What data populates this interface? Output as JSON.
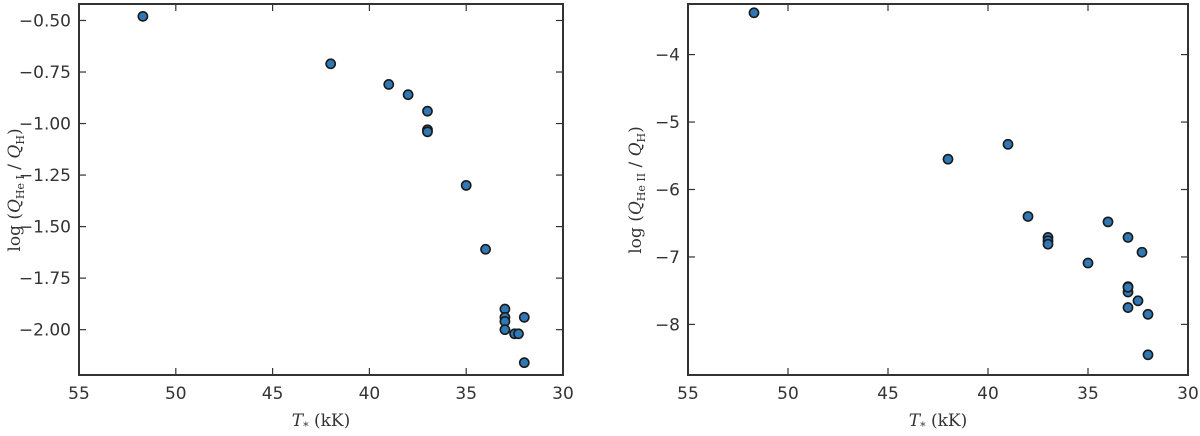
{
  "chart_data": [
    {
      "type": "scatter",
      "xlabel": "T* (kK)",
      "ylabel": "log (QHe I / QH)",
      "xlim": [
        55,
        30
      ],
      "ylim": [
        -2.22,
        -0.42
      ],
      "xticks": [
        55,
        50,
        45,
        40,
        35,
        30
      ],
      "yticks": [
        -0.5,
        -0.75,
        -1.0,
        -1.25,
        -1.5,
        -1.75,
        -2.0
      ],
      "ytick_labels": [
        "−0.50",
        "−0.75",
        "−1.00",
        "−1.25",
        "−1.50",
        "−1.75",
        "−2.00"
      ],
      "xtick_labels": [
        "55",
        "50",
        "45",
        "40",
        "35",
        "30"
      ],
      "grid": false,
      "marker_color": "#2f78b5",
      "marker_edge": "#1a1a1a",
      "x": [
        51.7,
        42.0,
        39.0,
        38.0,
        37.0,
        37.0,
        37.0,
        35.0,
        34.0,
        33.0,
        33.0,
        33.0,
        33.0,
        32.5,
        32.3,
        32.0,
        32.0
      ],
      "y": [
        -0.48,
        -0.71,
        -0.81,
        -0.86,
        -0.94,
        -1.03,
        -1.04,
        -1.3,
        -1.61,
        -1.9,
        -1.94,
        -1.96,
        -2.0,
        -2.02,
        -2.02,
        -1.94,
        -2.16
      ]
    },
    {
      "type": "scatter",
      "xlabel": "T* (kK)",
      "ylabel": "log (QHe II / QH)",
      "xlim": [
        55,
        30
      ],
      "ylim": [
        -8.75,
        -3.25
      ],
      "xticks": [
        55,
        50,
        45,
        40,
        35,
        30
      ],
      "yticks": [
        -4,
        -5,
        -6,
        -7,
        -8
      ],
      "ytick_labels": [
        "−4",
        "−5",
        "−6",
        "−7",
        "−8"
      ],
      "xtick_labels": [
        "55",
        "50",
        "45",
        "40",
        "35",
        "30"
      ],
      "grid": false,
      "marker_color": "#2f78b5",
      "marker_edge": "#1a1a1a",
      "x": [
        51.7,
        42.0,
        39.0,
        38.0,
        37.0,
        37.0,
        37.0,
        35.0,
        34.0,
        33.0,
        33.0,
        33.0,
        33.0,
        33.0,
        32.5,
        32.3,
        32.0,
        32.0
      ],
      "y": [
        -3.38,
        -5.55,
        -5.33,
        -6.4,
        -6.71,
        -6.76,
        -6.81,
        -7.09,
        -6.48,
        -6.71,
        -7.44,
        -7.52,
        -7.75,
        -7.45,
        -7.65,
        -6.93,
        -7.85,
        -8.45
      ]
    }
  ]
}
